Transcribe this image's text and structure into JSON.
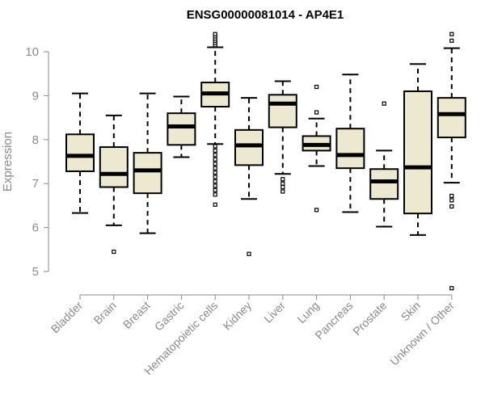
{
  "chart_data": {
    "type": "box",
    "title": "ENSG00000081014 - AP4E1",
    "ylabel": "Expression",
    "ylim": [
      4.5,
      10.5
    ],
    "yticks": [
      "5",
      "6",
      "7",
      "8",
      "9",
      "10"
    ],
    "box_fill": "#ede8d0",
    "categories": [
      "Bladder",
      "Brain",
      "Breast",
      "Gastric",
      "Hematopoietic cells",
      "Kidney",
      "Liver",
      "Lung",
      "Pancreas",
      "Prostate",
      "Skin",
      "Unknown / Other"
    ],
    "series": [
      {
        "q1": 7.28,
        "median": 7.63,
        "q3": 8.12,
        "whisker_low": 6.33,
        "whisker_high": 9.05,
        "outliers": []
      },
      {
        "q1": 6.92,
        "median": 7.22,
        "q3": 7.83,
        "whisker_low": 6.05,
        "whisker_high": 8.55,
        "outliers": [
          5.45
        ]
      },
      {
        "q1": 6.78,
        "median": 7.3,
        "q3": 7.7,
        "whisker_low": 5.87,
        "whisker_high": 9.05,
        "outliers": []
      },
      {
        "q1": 7.88,
        "median": 8.3,
        "q3": 8.6,
        "whisker_low": 7.6,
        "whisker_high": 8.98,
        "outliers": []
      },
      {
        "q1": 8.75,
        "median": 9.05,
        "q3": 9.3,
        "whisker_low": 7.9,
        "whisker_high": 10.1,
        "outliers": [
          10.15,
          10.2,
          10.25,
          10.3,
          10.35,
          10.4,
          7.85,
          7.75,
          7.65,
          7.55,
          7.45,
          7.35,
          7.25,
          7.15,
          7.05,
          6.95,
          6.85,
          6.75,
          6.52
        ]
      },
      {
        "q1": 7.42,
        "median": 7.87,
        "q3": 8.22,
        "whisker_low": 6.65,
        "whisker_high": 8.95,
        "outliers": [
          5.4
        ]
      },
      {
        "q1": 8.28,
        "median": 8.82,
        "q3": 9.02,
        "whisker_low": 7.22,
        "whisker_high": 9.33,
        "outliers": [
          7.1,
          7.0,
          6.92,
          6.82
        ]
      },
      {
        "q1": 7.75,
        "median": 7.88,
        "q3": 8.08,
        "whisker_low": 7.4,
        "whisker_high": 8.48,
        "outliers": [
          9.2,
          8.62,
          6.4
        ]
      },
      {
        "q1": 7.35,
        "median": 7.65,
        "q3": 8.25,
        "whisker_low": 6.35,
        "whisker_high": 9.48,
        "outliers": []
      },
      {
        "q1": 6.65,
        "median": 7.05,
        "q3": 7.33,
        "whisker_low": 6.02,
        "whisker_high": 7.75,
        "outliers": [
          8.82
        ]
      },
      {
        "q1": 6.32,
        "median": 7.37,
        "q3": 9.1,
        "whisker_low": 5.83,
        "whisker_high": 9.72,
        "outliers": []
      },
      {
        "q1": 8.05,
        "median": 8.58,
        "q3": 8.95,
        "whisker_low": 7.02,
        "whisker_high": 10.08,
        "outliers": [
          10.25,
          10.4,
          6.72,
          6.62,
          6.48,
          4.62
        ]
      }
    ]
  }
}
